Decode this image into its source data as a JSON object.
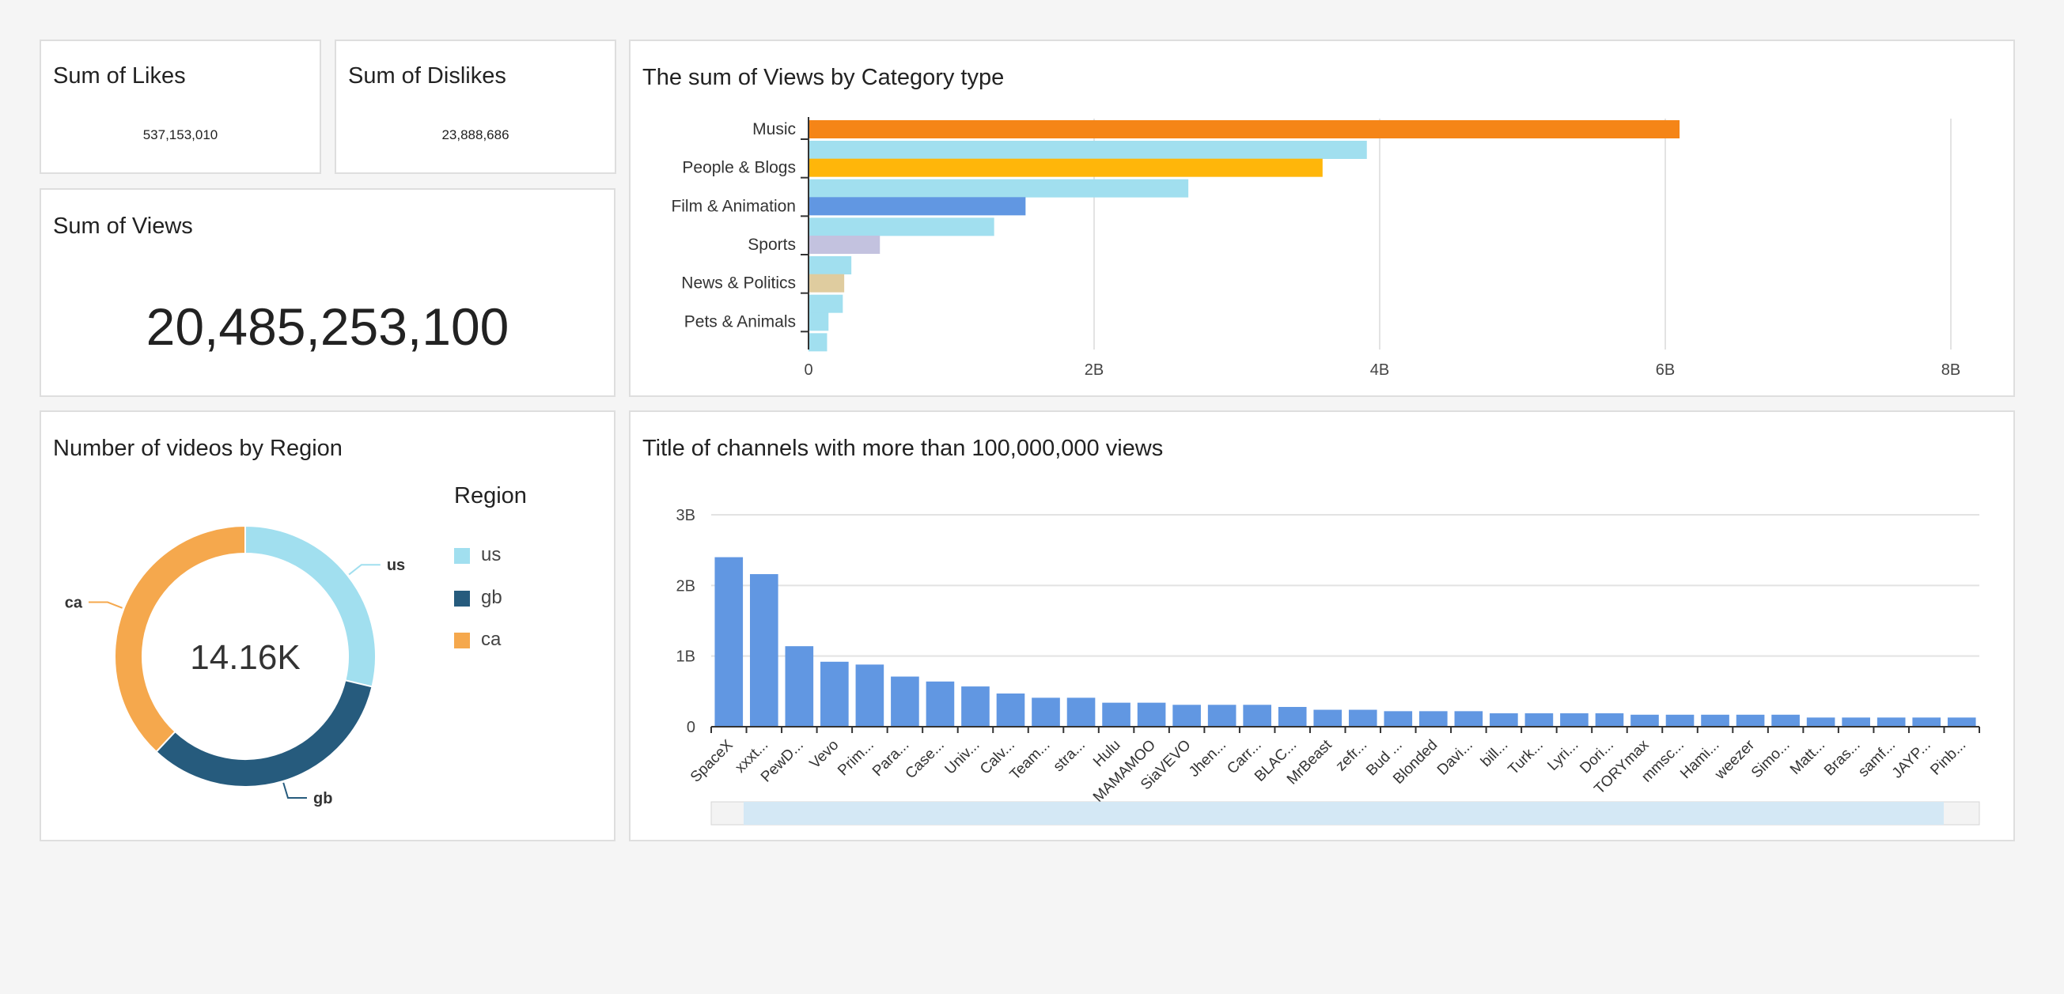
{
  "kpis": {
    "likes": {
      "title": "Sum of Likes",
      "value": "537,153,010"
    },
    "dislikes": {
      "title": "Sum of Dislikes",
      "value": "23,888,686"
    },
    "views": {
      "title": "Sum of Views",
      "value": "20,485,253,100"
    }
  },
  "colors": {
    "music": "#f58517",
    "people_blogs": "#ffb60a",
    "film_animation": "#6197e2",
    "sports": "#c3c2df",
    "news_politics": "#dfcc9f",
    "pets_animals": "#a1dfef",
    "comparison": "#a1dfef",
    "bars": "#6197e2",
    "region_us": "#a1dfef",
    "region_gb": "#265b7d",
    "region_ca": "#f5a84d"
  },
  "chart_data": [
    {
      "type": "bar",
      "orientation": "horizontal",
      "title": "The sum of Views by Category type",
      "categories": [
        "Music",
        "People & Blogs",
        "Film & Animation",
        "Sports",
        "News & Politics",
        "Pets & Animals"
      ],
      "series": [
        {
          "values": [
            6.1,
            3.6,
            1.52,
            0.5,
            0.25,
            0.14
          ]
        },
        {
          "values": [
            3.91,
            2.66,
            1.3,
            0.3,
            0.24,
            0.13
          ]
        }
      ],
      "xlim": [
        0,
        8
      ],
      "ticks": [
        "0",
        "2B",
        "4B",
        "6B",
        "8B"
      ],
      "tick_values": [
        0,
        2,
        4,
        6,
        8
      ],
      "unit": "B",
      "grid": true
    },
    {
      "type": "pie",
      "title": "Number of videos by Region",
      "center_label": "14.16K",
      "legend_title": "Region",
      "legend_position": "right",
      "labels": [
        "us",
        "gb",
        "ca"
      ],
      "values": [
        4.07,
        4.7,
        5.39
      ]
    },
    {
      "type": "bar",
      "title": "Title of channels with more than 100,000,000 views",
      "categories": [
        "SpaceX",
        "xxxt...",
        "PewD...",
        "Vevo",
        "Prim...",
        "Para...",
        "Case...",
        "Univ...",
        "Calv...",
        "Team...",
        "stra...",
        "Hulu",
        "MAMAMOO",
        "SiaVEVO",
        "Jhen...",
        "Carr...",
        "BLAC...",
        "MrBeast",
        "zefr...",
        "Bud ...",
        "Blonded",
        "Davi...",
        "bill...",
        "Turk...",
        "Lyri...",
        "Dori...",
        "TORYmax",
        "mmsc...",
        "Hami...",
        "weezer",
        "Simo...",
        "Matt...",
        "Bras...",
        "samf...",
        "JAYP...",
        "Pinb..."
      ],
      "values": [
        2.4,
        2.16,
        1.14,
        0.92,
        0.88,
        0.71,
        0.64,
        0.57,
        0.47,
        0.41,
        0.41,
        0.34,
        0.34,
        0.31,
        0.31,
        0.31,
        0.28,
        0.24,
        0.24,
        0.22,
        0.22,
        0.22,
        0.19,
        0.19,
        0.19,
        0.19,
        0.17,
        0.17,
        0.17,
        0.17,
        0.17,
        0.13,
        0.13,
        0.13,
        0.13,
        0.13
      ],
      "ylim": [
        0,
        3
      ],
      "ticks": [
        "0",
        "1B",
        "2B",
        "3B"
      ],
      "tick_values": [
        0,
        1,
        2,
        3
      ],
      "unit": "B",
      "grid": true
    }
  ]
}
